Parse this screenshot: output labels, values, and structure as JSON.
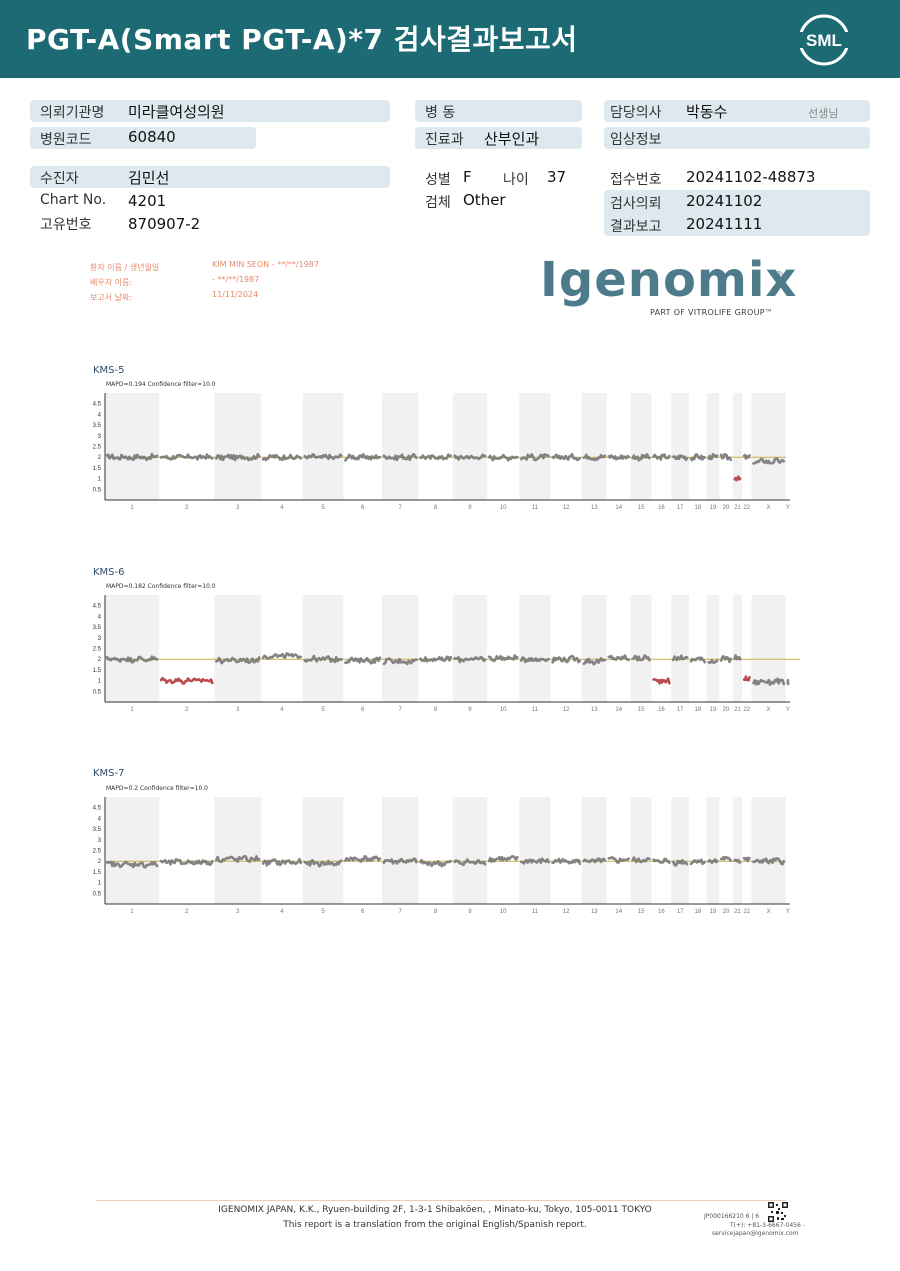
{
  "header": {
    "title": "PGT-A(Smart  PGT-A)*7 검사결과보고서",
    "logo": "SML"
  },
  "info": {
    "institution_label": "의뢰기관명",
    "institution": "미라클여성의원",
    "hospital_code_label": "병원코드",
    "hospital_code": "60840",
    "ward_label": "병      동",
    "ward": "",
    "dept_label": "진료과",
    "dept": "산부인과",
    "doctor_label": "담당의사",
    "doctor": "박동수",
    "doctor_suffix": "선생님",
    "clinical_label": "임상정보",
    "clinical": "",
    "patient_label": "수진자",
    "patient": "김민선",
    "sex_label": "성별",
    "sex": "F",
    "age_label": "나이",
    "age": "37",
    "specimen_label": "검체",
    "specimen": "Other",
    "chart_no_label": "Chart No.",
    "chart_no": "4201",
    "unique_no_label": "고유번호",
    "unique_no": "870907-2",
    "receipt_label": "접수번호",
    "receipt": "20241102-48873",
    "request_label": "검사의뢰",
    "request": "20241102",
    "report_label": "결과보고",
    "report": "20241111"
  },
  "report_meta": {
    "patient_name_label": "환자 이름 / 생년월일",
    "patient_name_value": "KIM MIN SEON - **/**/1987",
    "partner_label": "배우자 이름:",
    "partner_value": " - **/**/1987",
    "report_date_label": "보고서 날짜:",
    "report_date_value": "11/11/2024"
  },
  "brand": {
    "name": "Igenomix",
    "registered": "®",
    "sub": "PART OF VITROLIFE GROUP™",
    "color": "#4d7b8c"
  },
  "chart_common": {
    "y_ticks": [
      "4.5",
      "4",
      "3.5",
      "3",
      "2.5",
      "2",
      "1.5",
      "1",
      "0.5"
    ],
    "x_labels": [
      "1",
      "2",
      "3",
      "4",
      "5",
      "6",
      "7",
      "8",
      "9",
      "10",
      "11",
      "12",
      "13",
      "14",
      "15",
      "16",
      "17",
      "18",
      "19",
      "20",
      "21",
      "22",
      "X",
      "Y"
    ],
    "baseline": 2,
    "normal_color": "#777777",
    "abnormal_color": "#b13a3a",
    "baseline_color": "#c9b04a"
  },
  "chart_data": [
    {
      "type": "scatter",
      "title": "KMS-5",
      "subtitle": "MAPD=0.194 Confidence filter=10.0",
      "y_ticks": [
        "4.5",
        "4",
        "3.5",
        "3",
        "2.5",
        "2",
        "1.5",
        "1",
        "0.5"
      ],
      "x_labels": [
        "1",
        "2",
        "3",
        "4",
        "5",
        "6",
        "7",
        "8",
        "9",
        "10",
        "11",
        "12",
        "13",
        "14",
        "15",
        "16",
        "17",
        "18",
        "19",
        "20",
        "21",
        "22",
        "X",
        "Y"
      ],
      "ylim": [
        0,
        5
      ],
      "segments": [
        {
          "chr": "1",
          "value": 2.0
        },
        {
          "chr": "2",
          "value": 2.0
        },
        {
          "chr": "3",
          "value": 2.0
        },
        {
          "chr": "4",
          "value": 2.0
        },
        {
          "chr": "5",
          "value": 2.0
        },
        {
          "chr": "6",
          "value": 2.0
        },
        {
          "chr": "7",
          "value": 2.0
        },
        {
          "chr": "8",
          "value": 2.0
        },
        {
          "chr": "9",
          "value": 2.0
        },
        {
          "chr": "10",
          "value": 2.0
        },
        {
          "chr": "11",
          "value": 2.0
        },
        {
          "chr": "12",
          "value": 2.0
        },
        {
          "chr": "13",
          "value": 2.0
        },
        {
          "chr": "14",
          "value": 2.0
        },
        {
          "chr": "15",
          "value": 2.0
        },
        {
          "chr": "16",
          "value": 2.0
        },
        {
          "chr": "17",
          "value": 2.0
        },
        {
          "chr": "18",
          "value": 2.0
        },
        {
          "chr": "19",
          "value": 2.0
        },
        {
          "chr": "20",
          "value": 2.0
        },
        {
          "chr": "21",
          "value": 1.0,
          "abnormal": true
        },
        {
          "chr": "22",
          "value": 2.0
        },
        {
          "chr": "X",
          "value": 1.8
        },
        {
          "chr": "Y",
          "value": 0
        }
      ]
    },
    {
      "type": "scatter",
      "title": "KMS-6",
      "subtitle": "MAPD=0.182 Confidence filter=10.0",
      "y_ticks": [
        "4.5",
        "4",
        "3.5",
        "3",
        "2.5",
        "2",
        "1.5",
        "1",
        "0.5"
      ],
      "x_labels": [
        "1",
        "2",
        "3",
        "4",
        "5",
        "6",
        "7",
        "8",
        "9",
        "10",
        "11",
        "12",
        "13",
        "14",
        "15",
        "16",
        "17",
        "18",
        "19",
        "20",
        "21",
        "22",
        "X",
        "Y"
      ],
      "ylim": [
        0,
        5
      ],
      "segments": [
        {
          "chr": "1",
          "value": 2.0
        },
        {
          "chr": "2",
          "value": 1.0,
          "abnormal": true
        },
        {
          "chr": "3",
          "value": 1.95
        },
        {
          "chr": "4",
          "value": 2.15
        },
        {
          "chr": "5",
          "value": 2.0
        },
        {
          "chr": "6",
          "value": 1.95
        },
        {
          "chr": "7",
          "value": 1.9
        },
        {
          "chr": "8",
          "value": 2.0
        },
        {
          "chr": "9",
          "value": 2.0
        },
        {
          "chr": "10",
          "value": 2.05
        },
        {
          "chr": "11",
          "value": 2.0
        },
        {
          "chr": "12",
          "value": 2.0
        },
        {
          "chr": "13",
          "value": 1.9
        },
        {
          "chr": "14",
          "value": 2.05
        },
        {
          "chr": "15",
          "value": 2.05
        },
        {
          "chr": "16",
          "value": 1.0,
          "abnormal": true
        },
        {
          "chr": "17",
          "value": 2.05
        },
        {
          "chr": "18",
          "value": 2.0
        },
        {
          "chr": "19",
          "value": 1.9
        },
        {
          "chr": "20",
          "value": 2.0
        },
        {
          "chr": "21",
          "value": 2.05
        },
        {
          "chr": "22",
          "value": 1.1,
          "abnormal": true
        },
        {
          "chr": "X",
          "value": 0.95
        },
        {
          "chr": "Y",
          "value": 0.95
        }
      ]
    },
    {
      "type": "scatter",
      "title": "KMS-7",
      "subtitle": "MAPD=0.2 Confidence filter=10.0",
      "y_ticks": [
        "4.5",
        "4",
        "3.5",
        "3",
        "2.5",
        "2",
        "1.5",
        "1",
        "0.5"
      ],
      "x_labels": [
        "1",
        "2",
        "3",
        "4",
        "5",
        "6",
        "7",
        "8",
        "9",
        "10",
        "11",
        "12",
        "13",
        "14",
        "15",
        "16",
        "17",
        "18",
        "19",
        "20",
        "21",
        "22",
        "X",
        "Y"
      ],
      "ylim": [
        0,
        5
      ],
      "segments": [
        {
          "chr": "1",
          "value": 1.85
        },
        {
          "chr": "2",
          "value": 1.95
        },
        {
          "chr": "3",
          "value": 2.1
        },
        {
          "chr": "4",
          "value": 1.95
        },
        {
          "chr": "5",
          "value": 1.9
        },
        {
          "chr": "6",
          "value": 2.1
        },
        {
          "chr": "7",
          "value": 2.0
        },
        {
          "chr": "8",
          "value": 1.9
        },
        {
          "chr": "9",
          "value": 1.95
        },
        {
          "chr": "10",
          "value": 2.1
        },
        {
          "chr": "11",
          "value": 2.0
        },
        {
          "chr": "12",
          "value": 2.0
        },
        {
          "chr": "13",
          "value": 2.0
        },
        {
          "chr": "14",
          "value": 2.05
        },
        {
          "chr": "15",
          "value": 2.05
        },
        {
          "chr": "16",
          "value": 2.0
        },
        {
          "chr": "17",
          "value": 1.95
        },
        {
          "chr": "18",
          "value": 2.0
        },
        {
          "chr": "19",
          "value": 2.0
        },
        {
          "chr": "20",
          "value": 2.1
        },
        {
          "chr": "21",
          "value": 2.05
        },
        {
          "chr": "22",
          "value": 2.1
        },
        {
          "chr": "X",
          "value": 2.0
        },
        {
          "chr": "Y",
          "value": 0
        }
      ]
    }
  ],
  "footer": {
    "line1": "IGENOMIX JAPAN, K.K., Ryuen-building 2F, 1-3-1 Shibakōen, , Minato-ku, Tokyo, 105-0011 TOKYO",
    "line2": "This report is a translation from the original English/Spanish report.",
    "code": "JP000166210   6 | 6",
    "tel": "T(+): +81-3-6667-0456  -",
    "email": "servicejapan@igenomix.com"
  }
}
